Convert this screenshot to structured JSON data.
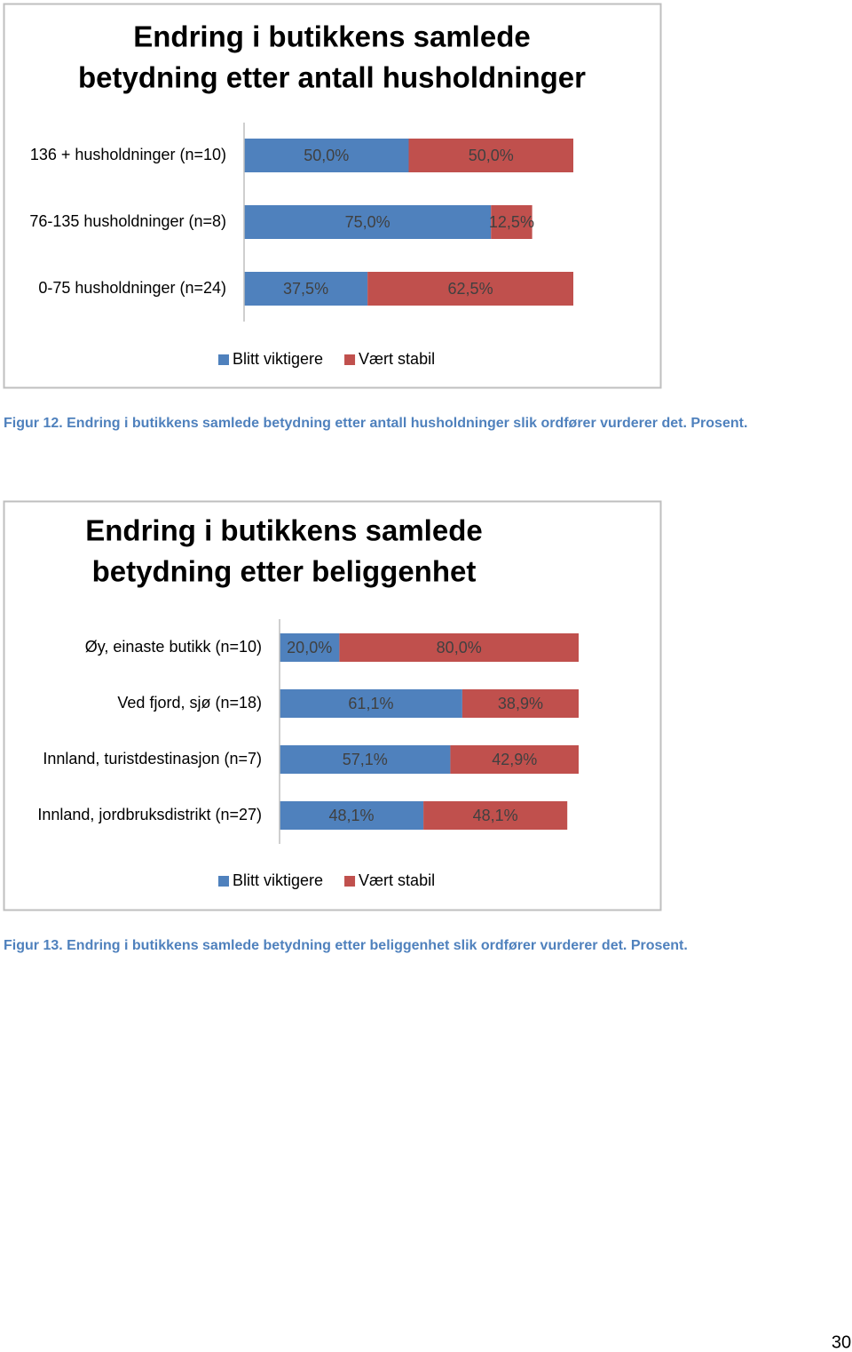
{
  "chart_data": [
    {
      "type": "stacked-bar-horizontal",
      "title": [
        "Endring i butikkens samlede",
        "betydning etter antall husholdninger"
      ],
      "categories": [
        "136 + husholdninger (n=10)",
        "76-135 husholdninger (n=8)",
        "0-75 husholdninger (n=24)"
      ],
      "series": [
        {
          "name": "Blitt viktigere",
          "color": "#4f81bd",
          "values": [
            50,
            75,
            37.5
          ],
          "value_labels": [
            "50,0%",
            "75,0%",
            "37,5%"
          ]
        },
        {
          "name": "Vært stabil",
          "color": "#c0504d",
          "values": [
            50,
            12.5,
            62.5
          ],
          "value_labels": [
            "50,0%",
            "12,5%",
            "62,5%"
          ]
        }
      ],
      "xlim": [
        0,
        100
      ],
      "caption": "Figur 12. Endring i butikkens samlede betydning etter antall husholdninger slik ordfører vurderer det. Prosent."
    },
    {
      "type": "stacked-bar-horizontal",
      "title": [
        "Endring i butikkens samlede",
        "betydning etter beliggenhet"
      ],
      "categories": [
        "Øy, einaste butikk (n=10)",
        "Ved fjord, sjø (n=18)",
        "Innland, turistdestinasjon (n=7)",
        "Innland, jordbruksdistrikt (n=27)"
      ],
      "series": [
        {
          "name": "Blitt viktigere",
          "color": "#4f81bd",
          "values": [
            20,
            61.1,
            57.1,
            48.1
          ],
          "value_labels": [
            "20,0%",
            "61,1%",
            "57,1%",
            "48,1%"
          ]
        },
        {
          "name": "Vært stabil",
          "color": "#c0504d",
          "values": [
            80,
            38.9,
            42.9,
            48.1
          ],
          "value_labels": [
            "80,0%",
            "38,9%",
            "42,9%",
            "48,1%"
          ]
        }
      ],
      "xlim": [
        0,
        100
      ],
      "caption": "Figur 13. Endring i butikkens samlede betydning etter beliggenhet slik ordfører vurderer det. Prosent."
    }
  ],
  "page_number": 30
}
